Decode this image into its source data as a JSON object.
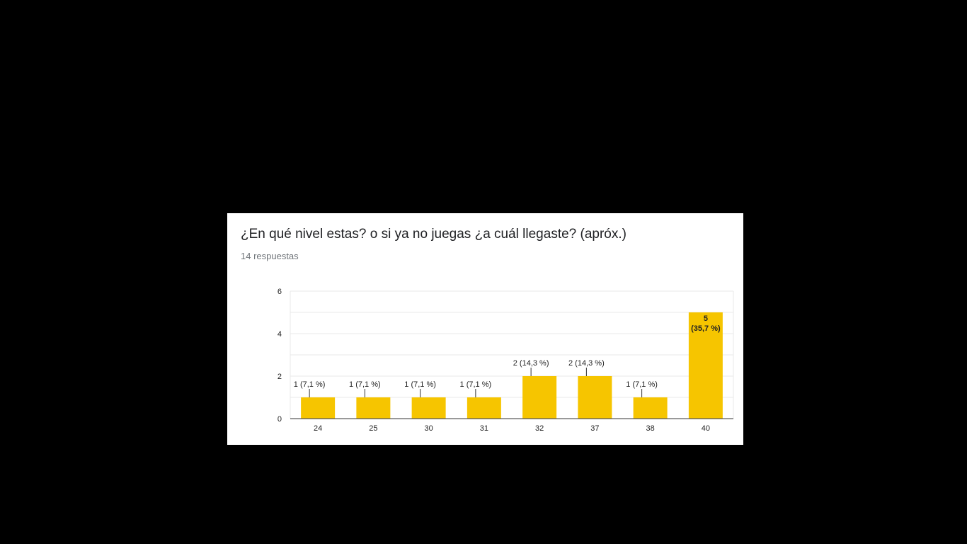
{
  "card": {
    "title": "¿En qué nivel estas? o si ya no juegas ¿a cuál llegaste? (apróx.)",
    "subtitle": "14 respuestas"
  },
  "colors": {
    "bar": "#f6c500",
    "axis": "#333333",
    "grid": "#e8e8e8",
    "text": "#222222"
  },
  "chart_data": {
    "type": "bar",
    "categories": [
      "24",
      "25",
      "30",
      "31",
      "32",
      "37",
      "38",
      "40"
    ],
    "values": [
      1,
      1,
      1,
      1,
      2,
      2,
      1,
      5
    ],
    "data_labels": [
      "1 (7,1 %)",
      "1 (7,1 %)",
      "1 (7,1 %)",
      "1 (7,1 %)",
      "2 (14,3 %)",
      "2 (14,3 %)",
      "1 (7,1 %)",
      "5\n(35,7 %)"
    ],
    "ylim": [
      0,
      6
    ],
    "yticks": [
      0,
      2,
      4,
      6
    ],
    "grid": true,
    "title": "",
    "xlabel": "",
    "ylabel": ""
  }
}
